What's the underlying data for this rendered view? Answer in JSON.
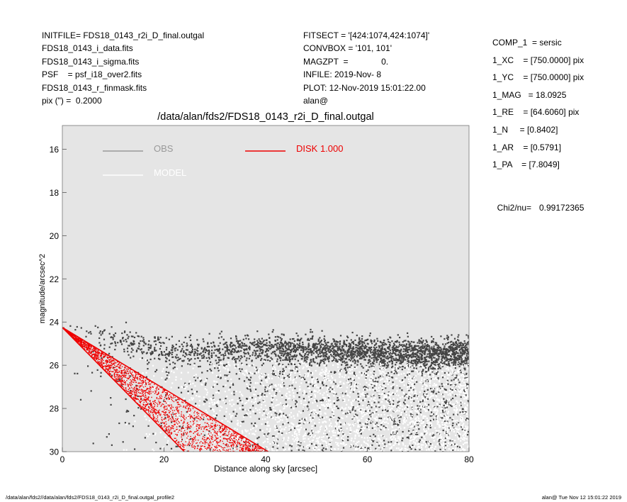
{
  "header_left": [
    "INITFILE= FDS18_0143_r2i_D_final.outgal",
    "FDS18_0143_i_data.fits",
    "FDS18_0143_i_sigma.fits",
    "PSF    = psf_i18_over2.fits",
    "FDS18_0143_r_finmask.fits",
    "pix (\") =  0.2000"
  ],
  "header_mid": [
    "FITSECT = '[424:1074,424:1074]'",
    "CONVBOX = '101, 101'",
    "MAGZPT  =              0.",
    "INFILE: 2019-Nov- 8",
    "PLOT: 12-Nov-2019 15:01:22.00",
    "alan@"
  ],
  "header_right": [
    "COMP_1  = sersic",
    "1_XC    = [750.0000] pix",
    "1_YC    = [750.0000] pix",
    "1_MAG   = 18.0925",
    "1_RE    = [64.6060] pix",
    "1_N     = [0.8402]",
    "1_AR    = [0.5791]",
    "1_PA    = [7.8049]"
  ],
  "chi2": {
    "label": "Chi2/nu=",
    "value": "0.99172365"
  },
  "footer": {
    "left": "/data/alan/fds2//data/alan/fds2/FDS18_0143_r2i_D_final.outgal_profile2",
    "right": "alan@  Tue Nov 12 15:01:22 2019"
  },
  "colors": {
    "plot_bg": "#e5e5e5",
    "obs": "#444444",
    "obs_legend": "#999999",
    "model": "#ffffff",
    "disk": "#ee0000"
  },
  "chart_data": {
    "type": "scatter",
    "title": "/data/alan/fds2/FDS18_0143_r2i_D_final.outgal",
    "xlabel": "Distance along sky [arcsec]",
    "ylabel": "magnitude/arcsec^2",
    "xlim": [
      0,
      80
    ],
    "ylim": [
      30,
      14.9
    ],
    "y_inverted": true,
    "xticks": [
      0,
      20,
      40,
      60,
      80
    ],
    "yticks": [
      16,
      18,
      20,
      22,
      24,
      26,
      28,
      30
    ],
    "legend": [
      {
        "name": "OBS",
        "color": "#999999"
      },
      {
        "name": "MODEL",
        "color": "#ffffff"
      },
      {
        "name": "DISK  1.000",
        "color": "#ee0000"
      }
    ],
    "series": [
      {
        "name": "OBS",
        "kind": "points",
        "profile": "24.2 at r=0, ~25.3 ridge from r=20 to r=80, scatter to 30"
      },
      {
        "name": "MODEL",
        "kind": "points",
        "profile": "white points concentrated near the OBS ridge"
      },
      {
        "name": "DISK  1.000",
        "kind": "band",
        "upper_edge": [
          [
            0,
            24.25
          ],
          [
            40.5,
            30
          ]
        ],
        "lower_edge": [
          [
            0,
            24.25
          ],
          [
            24,
            30
          ]
        ]
      }
    ]
  }
}
